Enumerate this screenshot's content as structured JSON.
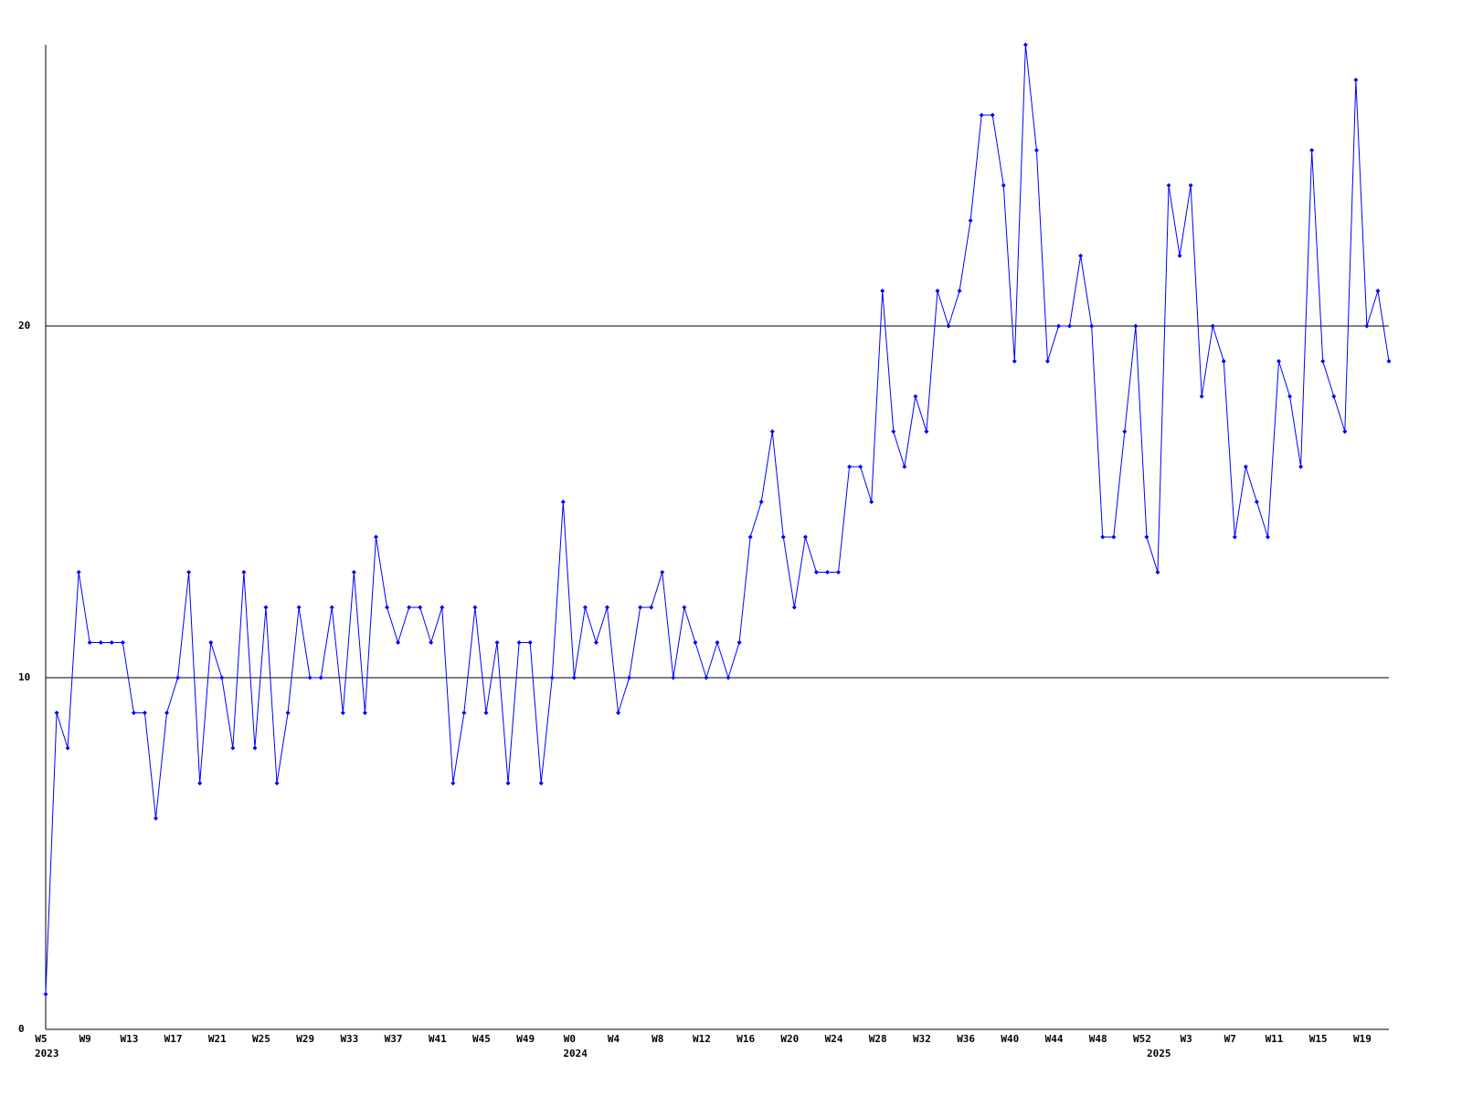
{
  "chart_data": {
    "type": "line",
    "categories": [
      "W5",
      null,
      null,
      null,
      "W9",
      null,
      null,
      null,
      "W13",
      null,
      null,
      null,
      "W17",
      null,
      null,
      null,
      "W21",
      null,
      null,
      null,
      "W25",
      null,
      null,
      null,
      "W29",
      null,
      null,
      null,
      "W33",
      null,
      null,
      null,
      "W37",
      null,
      null,
      null,
      "W41",
      null,
      null,
      null,
      "W45",
      null,
      null,
      null,
      "W49",
      null,
      null,
      null,
      "W0",
      null,
      null,
      null,
      "W4",
      null,
      null,
      null,
      "W8",
      null,
      null,
      null,
      "W12",
      null,
      null,
      null,
      "W16",
      null,
      null,
      null,
      "W20",
      null,
      null,
      null,
      "W24",
      null,
      null,
      null,
      "W28",
      null,
      null,
      null,
      "W32",
      null,
      null,
      null,
      "W36",
      null,
      null,
      null,
      "W40",
      null,
      null,
      null,
      "W44",
      null,
      null,
      null,
      "W48",
      null,
      null,
      null,
      "W52",
      null,
      null,
      null,
      "W3",
      null,
      null,
      null,
      "W7",
      null,
      null,
      null,
      "W11",
      null,
      null,
      null,
      "W15",
      null,
      null,
      null,
      "W19",
      null,
      null
    ],
    "year_labels": [
      {
        "label": "2023",
        "category_index": 0
      },
      {
        "label": "2024",
        "category_index": 48
      },
      {
        "label": "2025",
        "category_index": 101
      }
    ],
    "series": [
      {
        "color": "#0000ff",
        "values": [
          1,
          9,
          8,
          13,
          11,
          11,
          11,
          11,
          9,
          9,
          6,
          9,
          10,
          13,
          7,
          11,
          10,
          8,
          13,
          8,
          12,
          7,
          9,
          12,
          10,
          10,
          12,
          9,
          13,
          9,
          14,
          12,
          11,
          12,
          12,
          11,
          12,
          7,
          9,
          12,
          9,
          11,
          7,
          11,
          11,
          7,
          10,
          15,
          10,
          12,
          11,
          12,
          9,
          10,
          12,
          12,
          13,
          10,
          12,
          11,
          10,
          11,
          10,
          11,
          14,
          15,
          17,
          14,
          12,
          14,
          13,
          13,
          13,
          16,
          16,
          15,
          21,
          17,
          16,
          18,
          17,
          21,
          20,
          21,
          23,
          26,
          26,
          24,
          19,
          28,
          25,
          19,
          20,
          20,
          22,
          20,
          14,
          14,
          17,
          20,
          14,
          13,
          24,
          22,
          24,
          18,
          20,
          19,
          14,
          16,
          15,
          14,
          19,
          18,
          16,
          25,
          19,
          18,
          17,
          27,
          20,
          21,
          19
        ]
      }
    ],
    "ylim": [
      0,
      28
    ],
    "yticks": [
      0,
      10,
      20
    ],
    "grid": true
  }
}
